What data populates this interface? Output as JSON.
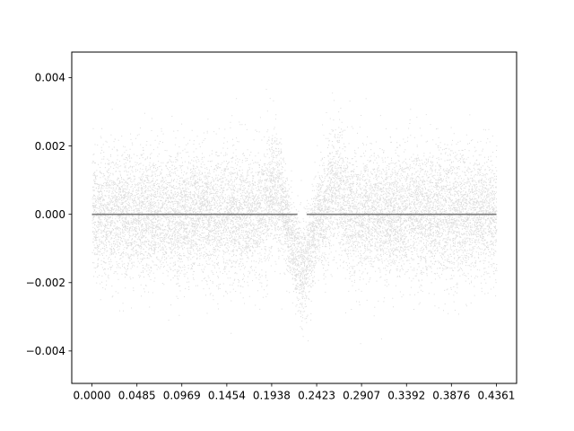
{
  "chart_data": {
    "type": "scatter",
    "title": "",
    "xlabel": "",
    "ylabel": "",
    "xlim": [
      -0.0218,
      0.4579
    ],
    "ylim": [
      -0.00495,
      0.00475
    ],
    "xticks": [
      0.0,
      0.0485,
      0.0969,
      0.1454,
      0.1938,
      0.2423,
      0.2907,
      0.3392,
      0.3876,
      0.4361
    ],
    "xtick_labels": [
      "0.0000",
      "0.0485",
      "0.0969",
      "0.1454",
      "0.1938",
      "0.2423",
      "0.2907",
      "0.3392",
      "0.3876",
      "0.4361"
    ],
    "yticks": [
      -0.004,
      -0.002,
      0.0,
      0.002,
      0.004
    ],
    "ytick_labels": [
      "−0.004",
      "−0.002",
      "0.000",
      "0.002",
      "0.004"
    ],
    "grid": false,
    "legend": "none",
    "series": [
      {
        "kind": "noisy scatter residuals",
        "x_range": [
          0.0,
          0.4361
        ],
        "y_mean": 0.0,
        "y_std": 0.0009,
        "approx_points": 14000,
        "color": "#808080",
        "dip": {
          "x_center": 0.226,
          "x_halfwidth": 0.012,
          "y_center": -0.0016
        },
        "bumps": [
          {
            "x_center": 0.197,
            "x_halfwidth": 0.01,
            "y_center": 0.0012
          },
          {
            "x_center": 0.262,
            "x_halfwidth": 0.01,
            "y_center": 0.0013
          }
        ]
      },
      {
        "kind": "dense baseline",
        "x_range": [
          0.0,
          0.4361
        ],
        "y": 0.0,
        "gap": [
          0.2215,
          0.2315
        ],
        "color": "#666666"
      }
    ]
  }
}
